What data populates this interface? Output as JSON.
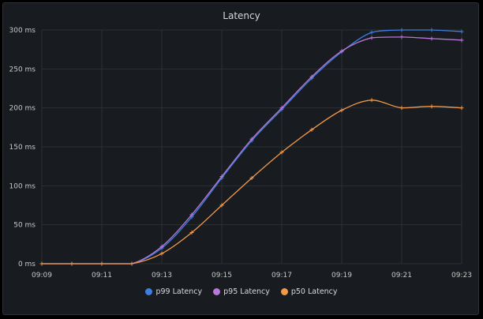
{
  "chart_data": {
    "type": "line",
    "title": "Latency",
    "x": [
      "09:09",
      "09:10",
      "09:11",
      "09:12",
      "09:13",
      "09:14",
      "09:15",
      "09:16",
      "09:17",
      "09:18",
      "09:19",
      "09:20",
      "09:21",
      "09:22",
      "09:23"
    ],
    "x_tick_labels": [
      "09:09",
      "09:11",
      "09:13",
      "09:15",
      "09:17",
      "09:19",
      "09:21",
      "09:23"
    ],
    "y_tick_labels": [
      "0 ms",
      "50 ms",
      "100 ms",
      "150 ms",
      "200 ms",
      "250 ms",
      "300 ms"
    ],
    "y_ticks": [
      0,
      50,
      100,
      150,
      200,
      250,
      300
    ],
    "ylim": [
      0,
      300
    ],
    "yunit": "ms",
    "grid": true,
    "legend_position": "bottom",
    "series": [
      {
        "name": "p99 Latency",
        "color": "#3d7fe0",
        "values": [
          0,
          0,
          0,
          0,
          20,
          60,
          110,
          158,
          198,
          238,
          272,
          297,
          300,
          300,
          298
        ]
      },
      {
        "name": "p95 Latency",
        "color": "#b877d9",
        "values": [
          0,
          0,
          0,
          0,
          22,
          63,
          112,
          160,
          200,
          240,
          273,
          290,
          291,
          289,
          287
        ]
      },
      {
        "name": "p50 Latency",
        "color": "#f2994a",
        "values": [
          0,
          0,
          0,
          0,
          13,
          40,
          75,
          110,
          143,
          172,
          197,
          210,
          200,
          202,
          200
        ]
      }
    ]
  }
}
